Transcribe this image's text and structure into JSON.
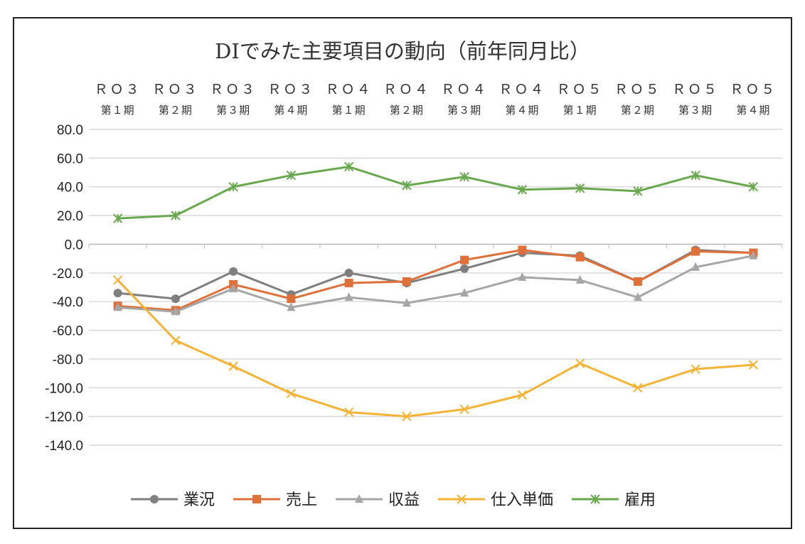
{
  "chart_data": {
    "type": "line",
    "title": "DIでみた主要項目の動向（前年同月比）",
    "categories": [
      [
        "ＲＯ３",
        "第１期"
      ],
      [
        "ＲＯ３",
        "第２期"
      ],
      [
        "ＲＯ３",
        "第３期"
      ],
      [
        "ＲＯ３",
        "第４期"
      ],
      [
        "ＲＯ４",
        "第１期"
      ],
      [
        "ＲＯ４",
        "第２期"
      ],
      [
        "ＲＯ４",
        "第３期"
      ],
      [
        "ＲＯ４",
        "第４期"
      ],
      [
        "ＲＯ５",
        "第１期"
      ],
      [
        "ＲＯ５",
        "第２期"
      ],
      [
        "ＲＯ５",
        "第３期"
      ],
      [
        "ＲＯ５",
        "第４期"
      ]
    ],
    "ylim": [
      -140,
      80
    ],
    "ytick_step": 20,
    "ytick_labels": [
      "80.0",
      "60.0",
      "40.0",
      "20.0",
      "0.0",
      "-20.0",
      "-40.0",
      "-60.0",
      "-80.0",
      "-100.0",
      "-120.0",
      "-140.0"
    ],
    "grid": true,
    "legend_position": "bottom",
    "series": [
      {
        "name": "業況",
        "color": "#7f7f7f",
        "marker": "circle",
        "values": [
          -34,
          -38,
          -19,
          -35,
          -20,
          -27,
          -17,
          -6,
          -8,
          -26,
          -4,
          -6
        ]
      },
      {
        "name": "売上",
        "color": "#e0703a",
        "marker": "square",
        "values": [
          -43,
          -46,
          -28,
          -38,
          -27,
          -26,
          -11,
          -4,
          -9,
          -26,
          -5,
          -6
        ]
      },
      {
        "name": "収益",
        "color": "#a6a6a6",
        "marker": "triangle",
        "values": [
          -44,
          -47,
          -31,
          -44,
          -37,
          -41,
          -34,
          -23,
          -25,
          -37,
          -16,
          -8
        ]
      },
      {
        "name": "仕入単価",
        "color": "#f5b335",
        "marker": "x",
        "values": [
          -25,
          -67,
          -85,
          -104,
          -117,
          -120,
          -115,
          -105,
          -83,
          -100,
          -87,
          -84
        ]
      },
      {
        "name": "雇用",
        "color": "#6aa84f",
        "marker": "asterisk",
        "values": [
          18,
          20,
          40,
          48,
          54,
          41,
          47,
          38,
          39,
          37,
          48,
          40
        ]
      }
    ]
  }
}
